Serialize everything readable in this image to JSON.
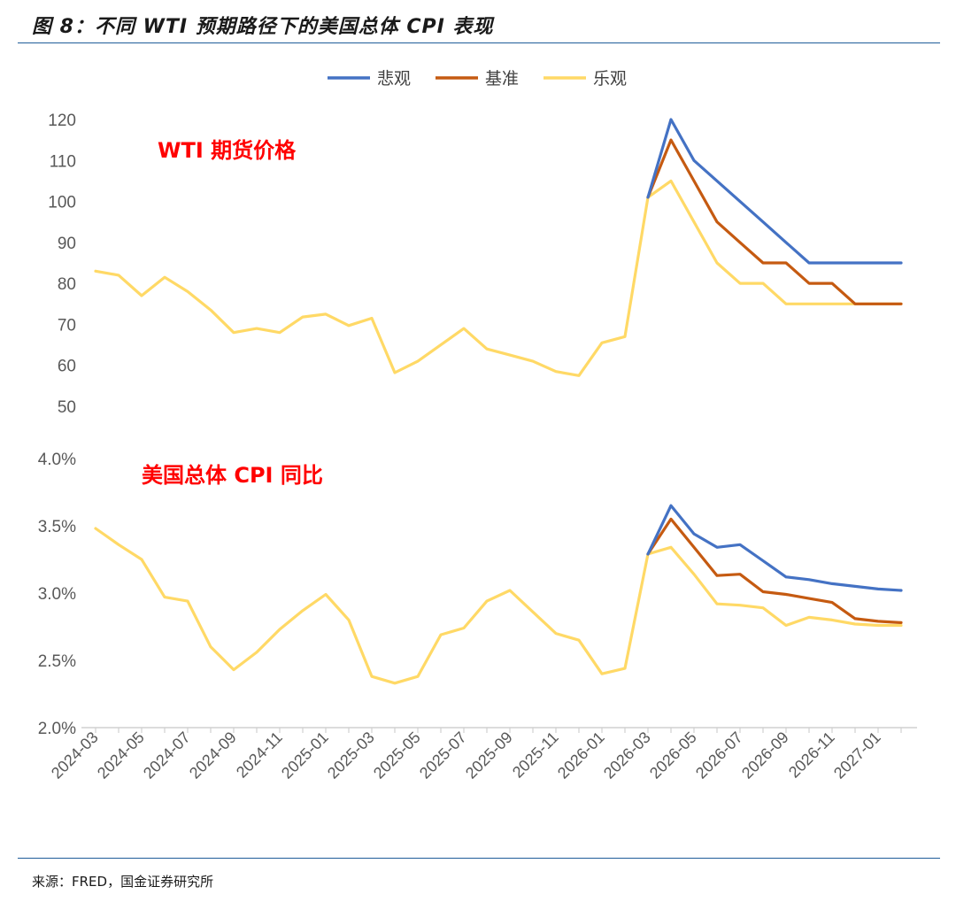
{
  "figure": {
    "title": "图 8：不同 WTI 预期路径下的美国总体 CPI 表现",
    "source": "来源：FRED，国金证券研究所"
  },
  "chart_data": [
    {
      "type": "line",
      "title": "",
      "annotation": "WTI 期货价格",
      "xlabel": "",
      "ylabel": "",
      "ylim": [
        50,
        120
      ],
      "y_ticks": [
        "120",
        "110",
        "100",
        "90",
        "80",
        "70",
        "60",
        "50"
      ],
      "x": [
        "2024-03",
        "2024-04",
        "2024-05",
        "2024-06",
        "2024-07",
        "2024-08",
        "2024-09",
        "2024-10",
        "2024-11",
        "2024-12",
        "2025-01",
        "2025-02",
        "2025-03",
        "2025-04",
        "2025-05",
        "2025-06",
        "2025-07",
        "2025-08",
        "2025-09",
        "2025-10",
        "2025-11",
        "2025-12",
        "2026-01",
        "2026-02",
        "2026-03",
        "2026-04",
        "2026-05",
        "2026-06",
        "2026-07",
        "2026-08",
        "2026-09",
        "2026-10",
        "2026-11",
        "2026-12",
        "2027-01",
        "2027-02"
      ],
      "series": [
        {
          "name": "悲观",
          "color": "#4472c4",
          "values": [
            null,
            null,
            null,
            null,
            null,
            null,
            null,
            null,
            null,
            null,
            null,
            null,
            null,
            null,
            null,
            null,
            null,
            null,
            null,
            null,
            null,
            null,
            null,
            null,
            101,
            120,
            110,
            105,
            100,
            95,
            90,
            85,
            85,
            85,
            85,
            85
          ]
        },
        {
          "name": "基准",
          "color": "#c55a11",
          "values": [
            null,
            null,
            null,
            null,
            null,
            null,
            null,
            null,
            null,
            null,
            null,
            null,
            null,
            null,
            null,
            null,
            null,
            null,
            null,
            null,
            null,
            null,
            null,
            null,
            101,
            115,
            105,
            95,
            90,
            85,
            85,
            80,
            80,
            75,
            75,
            75
          ]
        },
        {
          "name": "乐观",
          "color": "#ffd966",
          "values": [
            83,
            82,
            77,
            81.5,
            78,
            73.5,
            68,
            69,
            68,
            71.8,
            72.5,
            69.7,
            71.5,
            58.2,
            61,
            65,
            69,
            64,
            62.5,
            61,
            58.5,
            57.5,
            65.5,
            67,
            101,
            105,
            95,
            85,
            80,
            80,
            75,
            75,
            75,
            75,
            75,
            75
          ]
        }
      ]
    },
    {
      "type": "line",
      "title": "",
      "annotation": "美国总体 CPI 同比",
      "xlabel": "",
      "ylabel": "",
      "ylim": [
        2.0,
        4.0
      ],
      "y_ticks": [
        "4.0%",
        "3.5%",
        "3.0%",
        "2.5%",
        "2.0%"
      ],
      "x_ticks": [
        "2024-03",
        "2024-05",
        "2024-07",
        "2024-09",
        "2024-11",
        "2025-01",
        "2025-03",
        "2025-05",
        "2025-07",
        "2025-09",
        "2025-11",
        "2026-01",
        "2026-03",
        "2026-05",
        "2026-07",
        "2026-09",
        "2026-11",
        "2027-01"
      ],
      "x": [
        "2024-03",
        "2024-04",
        "2024-05",
        "2024-06",
        "2024-07",
        "2024-08",
        "2024-09",
        "2024-10",
        "2024-11",
        "2024-12",
        "2025-01",
        "2025-02",
        "2025-03",
        "2025-04",
        "2025-05",
        "2025-06",
        "2025-07",
        "2025-08",
        "2025-09",
        "2025-10",
        "2025-11",
        "2025-12",
        "2026-01",
        "2026-02",
        "2026-03",
        "2026-04",
        "2026-05",
        "2026-06",
        "2026-07",
        "2026-08",
        "2026-09",
        "2026-10",
        "2026-11",
        "2026-12",
        "2027-01",
        "2027-02"
      ],
      "series": [
        {
          "name": "悲观",
          "color": "#4472c4",
          "values": [
            null,
            null,
            null,
            null,
            null,
            null,
            null,
            null,
            null,
            null,
            null,
            null,
            null,
            null,
            null,
            null,
            null,
            null,
            null,
            null,
            null,
            null,
            null,
            null,
            3.29,
            3.65,
            3.44,
            3.34,
            3.36,
            3.24,
            3.12,
            3.1,
            3.07,
            3.05,
            3.03,
            3.02
          ]
        },
        {
          "name": "基准",
          "color": "#c55a11",
          "values": [
            null,
            null,
            null,
            null,
            null,
            null,
            null,
            null,
            null,
            null,
            null,
            null,
            null,
            null,
            null,
            null,
            null,
            null,
            null,
            null,
            null,
            null,
            null,
            null,
            3.29,
            3.55,
            3.34,
            3.13,
            3.14,
            3.01,
            2.99,
            2.96,
            2.93,
            2.81,
            2.79,
            2.78
          ]
        },
        {
          "name": "乐观",
          "color": "#ffd966",
          "values": [
            3.48,
            3.36,
            3.25,
            2.97,
            2.94,
            2.6,
            2.43,
            2.56,
            2.73,
            2.87,
            2.99,
            2.8,
            2.38,
            2.33,
            2.38,
            2.69,
            2.74,
            2.94,
            3.02,
            2.86,
            2.7,
            2.65,
            2.4,
            2.44,
            3.29,
            3.34,
            3.14,
            2.92,
            2.91,
            2.89,
            2.76,
            2.82,
            2.8,
            2.77,
            2.76,
            2.76
          ]
        }
      ]
    }
  ]
}
